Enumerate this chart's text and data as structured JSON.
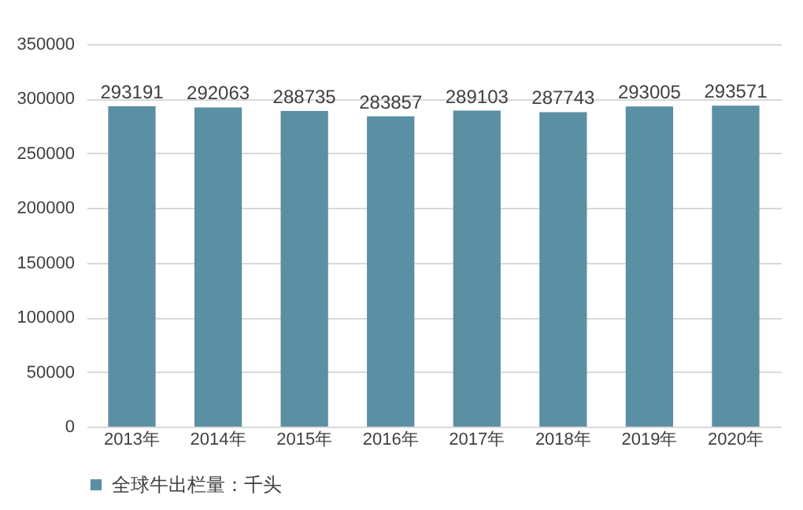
{
  "chart_data": {
    "type": "bar",
    "categories": [
      "2013年",
      "2014年",
      "2015年",
      "2016年",
      "2017年",
      "2018年",
      "2019年",
      "2020年"
    ],
    "series": [
      {
        "name": "全球牛出栏量：千头",
        "color": "#5b8fa3",
        "values": [
          293191,
          292063,
          288735,
          283857,
          289103,
          287743,
          293005,
          293571
        ]
      }
    ],
    "ylim": [
      0,
      350000
    ],
    "yticks": [
      0,
      50000,
      100000,
      150000,
      200000,
      250000,
      300000,
      350000
    ],
    "grid": "y",
    "legend": "bottom",
    "data_labels": true
  }
}
